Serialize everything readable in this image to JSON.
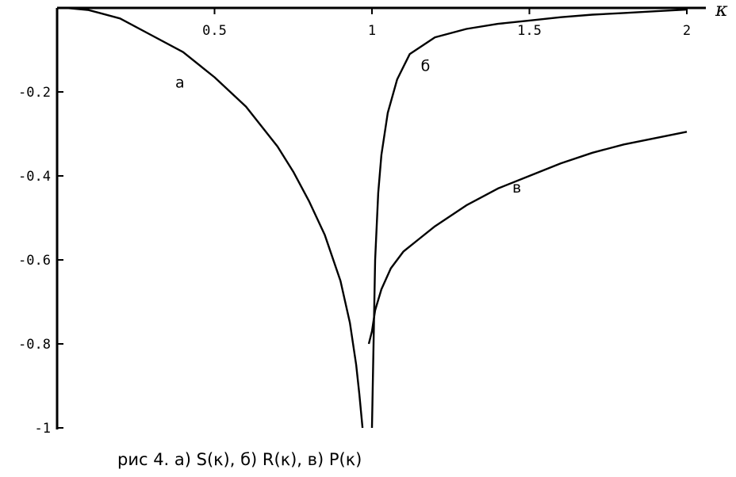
{
  "chart_data": {
    "type": "line",
    "xlabel": "κ",
    "xlim": [
      0,
      2
    ],
    "ylim": [
      -1,
      0
    ],
    "x_ticks": [
      {
        "value": 0.5,
        "label": "0.5"
      },
      {
        "value": 1,
        "label": "1"
      },
      {
        "value": 1.5,
        "label": "1.5"
      },
      {
        "value": 2,
        "label": "2"
      }
    ],
    "y_ticks": [
      {
        "value": -0.2,
        "label": "-0.2"
      },
      {
        "value": -0.4,
        "label": "-0.4"
      },
      {
        "value": -0.6,
        "label": "-0.6"
      },
      {
        "value": -0.8,
        "label": "-0.8"
      },
      {
        "value": -1,
        "label": "-1"
      }
    ],
    "grid": false,
    "series": [
      {
        "name": "а",
        "label_at": [
          0.39,
          -0.19
        ],
        "x": [
          0.03,
          0.1,
          0.2,
          0.3,
          0.4,
          0.5,
          0.6,
          0.7,
          0.75,
          0.8,
          0.85,
          0.9,
          0.93,
          0.95,
          0.96,
          0.97
        ],
        "y": [
          0,
          -0.005,
          -0.025,
          -0.065,
          -0.105,
          -0.165,
          -0.235,
          -0.33,
          -0.39,
          -0.46,
          -0.54,
          -0.65,
          -0.75,
          -0.85,
          -0.92,
          -1.0
        ]
      },
      {
        "name": "б",
        "label_at": [
          1.17,
          -0.15
        ],
        "x": [
          1.0,
          1.01,
          1.02,
          1.03,
          1.05,
          1.08,
          1.12,
          1.2,
          1.3,
          1.4,
          1.5,
          1.6,
          1.7,
          1.8,
          1.9,
          2.0
        ],
        "y": [
          -1.0,
          -0.6,
          -0.44,
          -0.35,
          -0.25,
          -0.17,
          -0.11,
          -0.07,
          -0.05,
          -0.038,
          -0.03,
          -0.022,
          -0.016,
          -0.012,
          -0.008,
          -0.004
        ]
      },
      {
        "name": "в",
        "label_at": [
          1.46,
          -0.44
        ],
        "x": [
          0.99,
          1.0,
          1.01,
          1.03,
          1.06,
          1.1,
          1.15,
          1.2,
          1.3,
          1.4,
          1.5,
          1.6,
          1.7,
          1.8,
          1.9,
          2.0
        ],
        "y": [
          -0.8,
          -0.77,
          -0.72,
          -0.67,
          -0.62,
          -0.58,
          -0.55,
          -0.52,
          -0.47,
          -0.43,
          -0.4,
          -0.37,
          -0.345,
          -0.325,
          -0.31,
          -0.295
        ]
      }
    ]
  },
  "caption": "рис 4. а) S(κ), б) R(κ), в) P(κ)"
}
